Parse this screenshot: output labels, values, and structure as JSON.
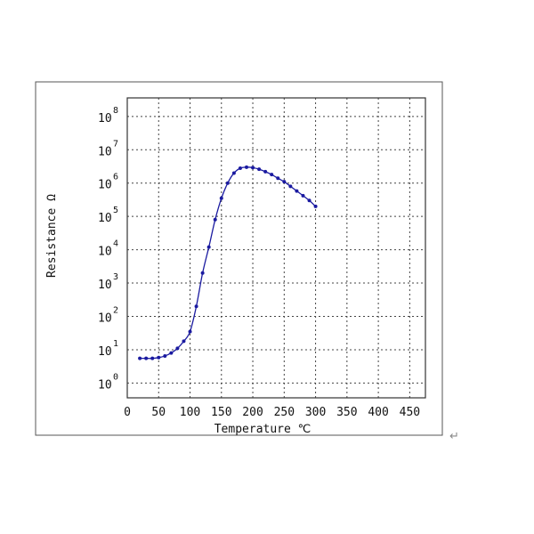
{
  "chart_data": {
    "type": "line",
    "title": "",
    "xlabel": "Temperature ℃",
    "ylabel": "Resistance Ω",
    "xlim": [
      0,
      475
    ],
    "ylim": [
      0.36,
      360000000
    ],
    "y_scale": "log",
    "x_ticks": [
      "0",
      "50",
      "100",
      "150",
      "200",
      "250",
      "300",
      "350",
      "400",
      "450"
    ],
    "y_ticks": [
      {
        "base": "10",
        "exp": "0",
        "value": 1
      },
      {
        "base": "10",
        "exp": "1",
        "value": 10
      },
      {
        "base": "10",
        "exp": "2",
        "value": 100
      },
      {
        "base": "10",
        "exp": "3",
        "value": 1000
      },
      {
        "base": "10",
        "exp": "4",
        "value": 10000
      },
      {
        "base": "10",
        "exp": "5",
        "value": 100000
      },
      {
        "base": "10",
        "exp": "6",
        "value": 1000000
      },
      {
        "base": "10",
        "exp": "7",
        "value": 10000000
      },
      {
        "base": "10",
        "exp": "8",
        "value": 100000000
      }
    ],
    "grid": true,
    "series": [
      {
        "color": "#1a1aa0",
        "marker": "dot",
        "x": [
          20,
          30,
          40,
          50,
          60,
          70,
          80,
          90,
          100,
          110,
          120,
          130,
          140,
          150,
          160,
          170,
          180,
          190,
          200,
          210,
          220,
          230,
          240,
          250,
          260,
          270,
          280,
          290,
          300
        ],
        "y": [
          5.5,
          5.5,
          5.5,
          5.8,
          6.5,
          8,
          11,
          18,
          35,
          200,
          2000,
          12000,
          80000,
          350000,
          1000000,
          2000000,
          2800000,
          3000000,
          2900000,
          2600000,
          2200000,
          1800000,
          1400000,
          1100000,
          800000,
          580000,
          420000,
          300000,
          200000
        ]
      }
    ]
  },
  "corner_mark": "↵"
}
